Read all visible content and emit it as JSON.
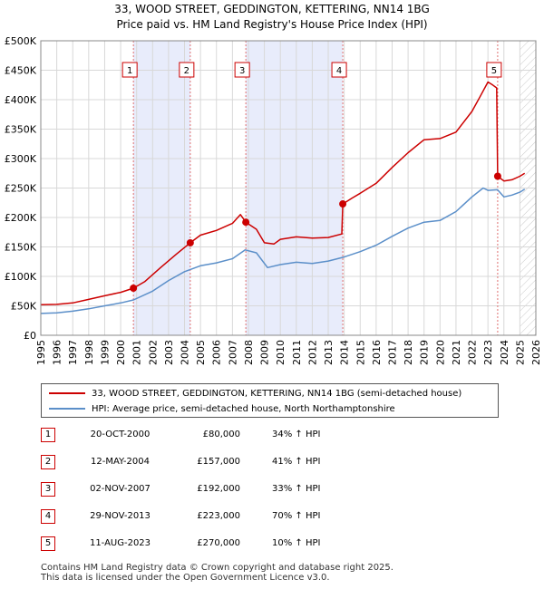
{
  "title": {
    "line1": "33, WOOD STREET, GEDDINGTON, KETTERING, NN14 1BG",
    "line2": "Price paid vs. HM Land Registry's House Price Index (HPI)"
  },
  "colors": {
    "property": "#cc0000",
    "hpi": "#5b8fc9",
    "band": "#e8ecfb",
    "future_hatch": "#c8c8c8",
    "grid": "#d8d8d8",
    "sale_line": "#e07070"
  },
  "legend": {
    "property_label": "33, WOOD STREET, GEDDINGTON, KETTERING, NN14 1BG (semi-detached house)",
    "hpi_label": "HPI: Average price, semi-detached house, North Northamptonshire"
  },
  "sales": [
    {
      "num": "1",
      "date": "20-OCT-2000",
      "price": "£80,000",
      "hpi": "34% ↑ HPI"
    },
    {
      "num": "2",
      "date": "12-MAY-2004",
      "price": "£157,000",
      "hpi": "41% ↑ HPI"
    },
    {
      "num": "3",
      "date": "02-NOV-2007",
      "price": "£192,000",
      "hpi": "33% ↑ HPI"
    },
    {
      "num": "4",
      "date": "29-NOV-2013",
      "price": "£223,000",
      "hpi": "70% ↑ HPI"
    },
    {
      "num": "5",
      "date": "11-AUG-2023",
      "price": "£270,000",
      "hpi": "10% ↑ HPI"
    }
  ],
  "footer": {
    "line1": "Contains HM Land Registry data © Crown copyright and database right 2025.",
    "line2": "This data is licensed under the Open Government Licence v3.0."
  },
  "chart_data": {
    "type": "line",
    "title": "33, WOOD STREET, GEDDINGTON, KETTERING, NN14 1BG",
    "subtitle": "Price paid vs. HM Land Registry's House Price Index (HPI)",
    "xlabel": "",
    "ylabel": "",
    "xlim": [
      1995,
      2026
    ],
    "ylim": [
      0,
      500000
    ],
    "grid": true,
    "yticks": [
      {
        "value": 0,
        "label": "£0"
      },
      {
        "value": 50000,
        "label": "£50K"
      },
      {
        "value": 100000,
        "label": "£100K"
      },
      {
        "value": 150000,
        "label": "£150K"
      },
      {
        "value": 200000,
        "label": "£200K"
      },
      {
        "value": 250000,
        "label": "£250K"
      },
      {
        "value": 300000,
        "label": "£300K"
      },
      {
        "value": 350000,
        "label": "£350K"
      },
      {
        "value": 400000,
        "label": "£400K"
      },
      {
        "value": 450000,
        "label": "£450K"
      },
      {
        "value": 500000,
        "label": "£500K"
      }
    ],
    "xticks": [
      "1995",
      "1996",
      "1997",
      "1998",
      "1999",
      "2000",
      "2001",
      "2002",
      "2003",
      "2004",
      "2005",
      "2006",
      "2007",
      "2008",
      "2009",
      "2010",
      "2011",
      "2012",
      "2013",
      "2014",
      "2015",
      "2016",
      "2017",
      "2018",
      "2019",
      "2020",
      "2021",
      "2022",
      "2023",
      "2024",
      "2025",
      "2026"
    ],
    "shaded_bands": [
      [
        2000.8,
        2004.36
      ],
      [
        2007.84,
        2013.91
      ]
    ],
    "future_from": 2025.0,
    "sale_markers": [
      {
        "label": "1",
        "x": 2000.8,
        "y": 80000
      },
      {
        "label": "2",
        "x": 2004.36,
        "y": 157000
      },
      {
        "label": "3",
        "x": 2007.84,
        "y": 192000
      },
      {
        "label": "4",
        "x": 2013.91,
        "y": 223000
      },
      {
        "label": "5",
        "x": 2023.61,
        "y": 270000
      }
    ],
    "series": [
      {
        "name": "33, WOOD STREET, GEDDINGTON, KETTERING, NN14 1BG (semi-detached house)",
        "color": "#cc0000",
        "points": [
          [
            1995,
            52000
          ],
          [
            1996,
            52500
          ],
          [
            1997,
            55000
          ],
          [
            1998,
            61000
          ],
          [
            1999,
            67000
          ],
          [
            2000,
            73000
          ],
          [
            2000.8,
            80000
          ],
          [
            2001.5,
            91000
          ],
          [
            2002.5,
            115000
          ],
          [
            2003.5,
            138000
          ],
          [
            2004.36,
            157000
          ],
          [
            2005,
            170000
          ],
          [
            2006,
            178000
          ],
          [
            2007,
            190000
          ],
          [
            2007.5,
            205000
          ],
          [
            2007.84,
            192000
          ],
          [
            2008.5,
            180000
          ],
          [
            2009,
            157000
          ],
          [
            2009.6,
            155000
          ],
          [
            2010,
            163000
          ],
          [
            2011,
            167000
          ],
          [
            2012,
            165000
          ],
          [
            2013,
            166000
          ],
          [
            2013.85,
            172000
          ],
          [
            2013.91,
            223000
          ],
          [
            2014.5,
            233000
          ],
          [
            2015,
            241000
          ],
          [
            2016,
            258000
          ],
          [
            2017,
            285000
          ],
          [
            2018,
            310000
          ],
          [
            2019,
            332000
          ],
          [
            2020,
            334000
          ],
          [
            2021,
            345000
          ],
          [
            2022,
            380000
          ],
          [
            2022.5,
            405000
          ],
          [
            2023,
            430000
          ],
          [
            2023.3,
            425000
          ],
          [
            2023.55,
            420000
          ],
          [
            2023.61,
            270000
          ],
          [
            2024,
            262000
          ],
          [
            2024.5,
            264000
          ],
          [
            2025,
            270000
          ],
          [
            2025.3,
            275000
          ]
        ]
      },
      {
        "name": "HPI: Average price, semi-detached house, North Northamptonshire",
        "color": "#5b8fc9",
        "points": [
          [
            1995,
            37000
          ],
          [
            1996,
            38000
          ],
          [
            1997,
            41000
          ],
          [
            1998,
            45000
          ],
          [
            1999,
            50000
          ],
          [
            2000,
            55000
          ],
          [
            2000.8,
            60000
          ],
          [
            2002,
            75000
          ],
          [
            2003,
            93000
          ],
          [
            2004,
            108000
          ],
          [
            2005,
            118000
          ],
          [
            2006,
            123000
          ],
          [
            2007,
            130000
          ],
          [
            2007.8,
            145000
          ],
          [
            2008.5,
            140000
          ],
          [
            2009.2,
            115000
          ],
          [
            2010,
            120000
          ],
          [
            2011,
            124000
          ],
          [
            2012,
            122000
          ],
          [
            2013,
            126000
          ],
          [
            2014,
            133000
          ],
          [
            2015,
            142000
          ],
          [
            2016,
            153000
          ],
          [
            2017,
            168000
          ],
          [
            2018,
            182000
          ],
          [
            2019,
            192000
          ],
          [
            2020,
            195000
          ],
          [
            2021,
            210000
          ],
          [
            2022,
            235000
          ],
          [
            2022.7,
            250000
          ],
          [
            2023,
            246000
          ],
          [
            2023.6,
            247000
          ],
          [
            2024,
            235000
          ],
          [
            2024.5,
            238000
          ],
          [
            2025,
            243000
          ],
          [
            2025.3,
            248000
          ]
        ]
      }
    ]
  }
}
